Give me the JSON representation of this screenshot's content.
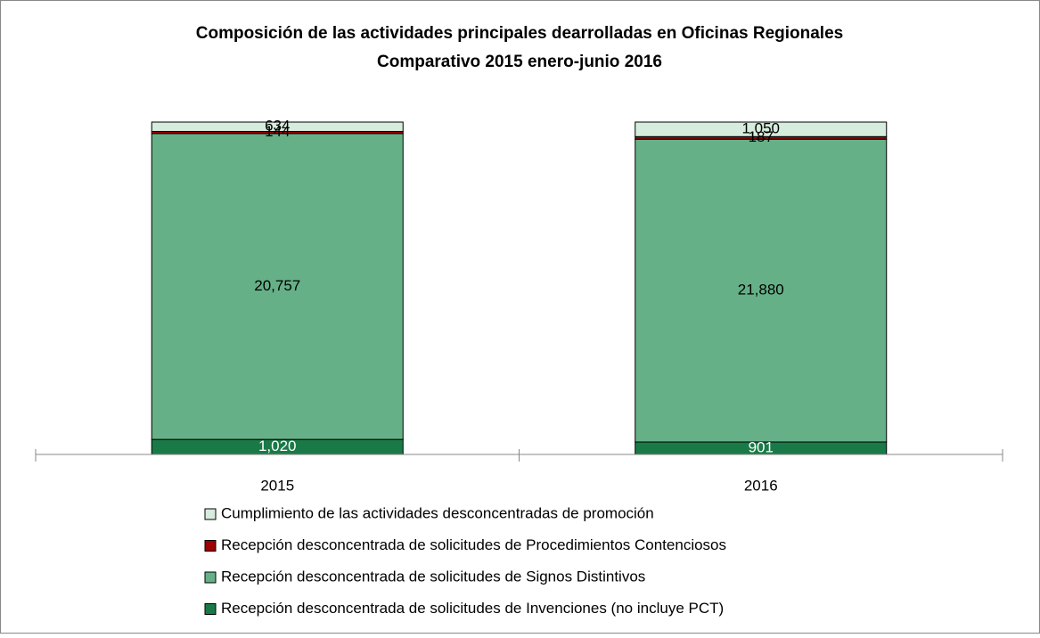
{
  "chart_data": {
    "type": "bar",
    "stacking": "percent",
    "title": "Composición de las actividades principales dearrolladas en Oficinas Regionales",
    "subtitle": "Comparativo 2015 enero-junio 2016",
    "categories": [
      "2015",
      "2016"
    ],
    "series": [
      {
        "name": "Recepción desconcentrada de solicitudes de Invenciones (no incluye PCT)",
        "color": "#1a7a47",
        "values": [
          1020,
          901
        ],
        "value_labels": [
          "1,020",
          "901"
        ]
      },
      {
        "name": "Recepción desconcentrada de solicitudes de Signos Distintivos",
        "color": "#66b088",
        "values": [
          20757,
          21880
        ],
        "value_labels": [
          "20,757",
          "21,880"
        ]
      },
      {
        "name": "Recepción desconcentrada de solicitudes de Procedimientos Contenciosos",
        "color": "#a00000",
        "values": [
          144,
          187
        ],
        "value_labels": [
          "144",
          "187"
        ]
      },
      {
        "name": "Cumplimiento de las actividades desconcentradas de promoción",
        "color": "#d6ecdc",
        "values": [
          634,
          1050
        ],
        "value_labels": [
          "634",
          "1,050"
        ]
      }
    ],
    "legend": "bottom"
  }
}
